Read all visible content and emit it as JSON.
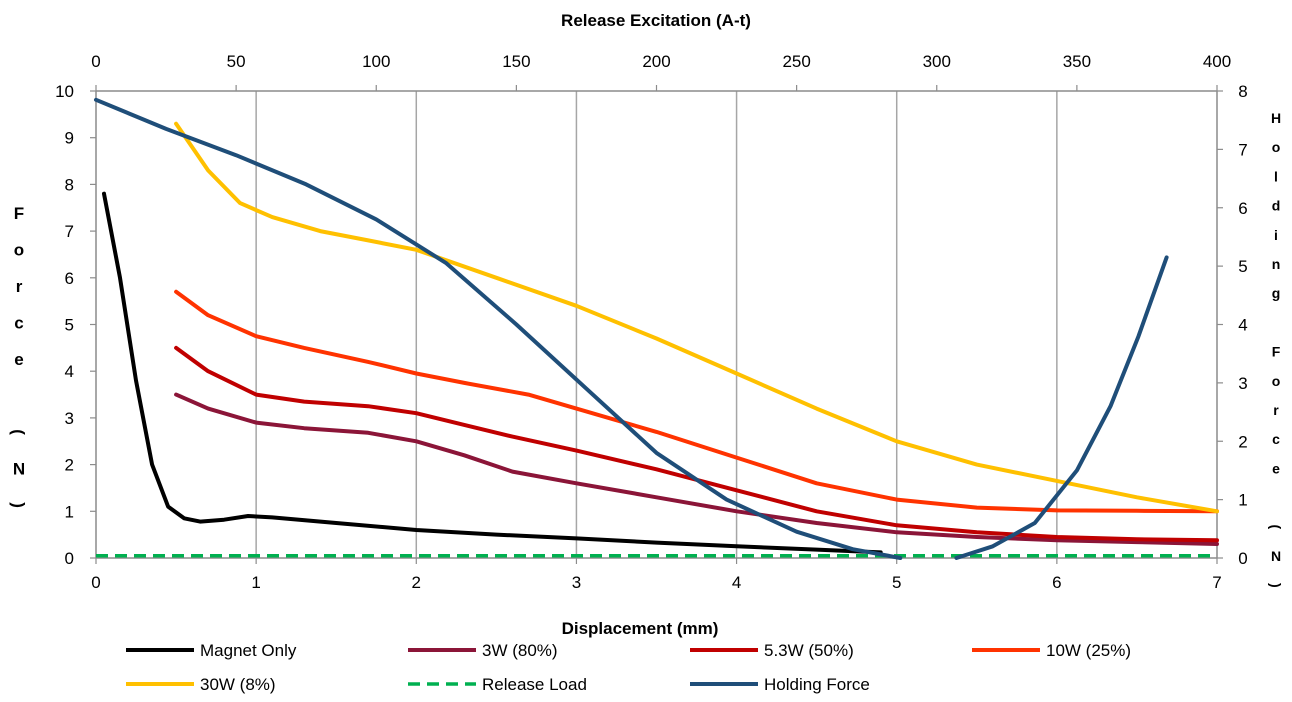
{
  "chart_data": {
    "type": "line",
    "xlabel": "Displacement (mm)",
    "x2label": "Release Excitation (A-t)",
    "ylabel": "Force (N)",
    "y2label": "Holding Force (N)",
    "xlim": [
      0,
      7
    ],
    "x2lim": [
      0,
      400
    ],
    "ylim": [
      0,
      10
    ],
    "y2lim": [
      0,
      8
    ],
    "x_ticks": [
      "0",
      "1",
      "2",
      "3",
      "4",
      "5",
      "6",
      "7"
    ],
    "x2_ticks": [
      "0",
      "50",
      "100",
      "150",
      "200",
      "250",
      "300",
      "350",
      "400"
    ],
    "y_ticks": [
      "0",
      "1",
      "2",
      "3",
      "4",
      "5",
      "6",
      "7",
      "8",
      "9",
      "10"
    ],
    "y2_ticks": [
      "0",
      "1",
      "2",
      "3",
      "4",
      "5",
      "6",
      "7",
      "8"
    ],
    "grid": "vertical",
    "legend_position": "bottom",
    "series": [
      {
        "name": "Magnet Only",
        "color": "#000000",
        "dash": "solid",
        "axis": "primary",
        "x": [
          0.05,
          0.15,
          0.25,
          0.35,
          0.45,
          0.55,
          0.65,
          0.8,
          0.95,
          1.1,
          1.5,
          2.0,
          2.5,
          3.0,
          3.5,
          4.0,
          4.5,
          4.9
        ],
        "y": [
          7.8,
          6.0,
          3.8,
          2.0,
          1.1,
          0.85,
          0.78,
          0.82,
          0.9,
          0.87,
          0.75,
          0.6,
          0.5,
          0.42,
          0.33,
          0.25,
          0.18,
          0.12
        ]
      },
      {
        "name": "3W (80%)",
        "color": "#8B1538",
        "dash": "solid",
        "axis": "primary",
        "x": [
          0.5,
          0.7,
          1.0,
          1.3,
          1.7,
          2.0,
          2.3,
          2.6,
          3.0,
          3.5,
          4.0,
          4.5,
          5.0,
          5.5,
          6.0,
          6.5,
          7.0
        ],
        "y": [
          3.5,
          3.2,
          2.9,
          2.78,
          2.68,
          2.5,
          2.2,
          1.85,
          1.6,
          1.3,
          1.0,
          0.75,
          0.55,
          0.45,
          0.38,
          0.34,
          0.3
        ]
      },
      {
        "name": "5.3W (50%)",
        "color": "#C00000",
        "dash": "solid",
        "axis": "primary",
        "x": [
          0.5,
          0.7,
          1.0,
          1.3,
          1.7,
          2.0,
          2.3,
          2.6,
          3.0,
          3.5,
          4.0,
          4.5,
          5.0,
          5.5,
          6.0,
          6.5,
          7.0
        ],
        "y": [
          4.5,
          4.0,
          3.5,
          3.35,
          3.25,
          3.1,
          2.85,
          2.6,
          2.3,
          1.9,
          1.45,
          1.0,
          0.7,
          0.55,
          0.45,
          0.4,
          0.38
        ]
      },
      {
        "name": "10W (25%)",
        "color": "#FF3300",
        "dash": "solid",
        "axis": "primary",
        "x": [
          0.5,
          0.7,
          1.0,
          1.3,
          1.7,
          2.0,
          2.3,
          2.7,
          3.0,
          3.5,
          4.0,
          4.5,
          5.0,
          5.5,
          6.0,
          6.5,
          7.0
        ],
        "y": [
          5.7,
          5.2,
          4.75,
          4.5,
          4.2,
          3.95,
          3.75,
          3.5,
          3.2,
          2.7,
          2.15,
          1.6,
          1.25,
          1.08,
          1.02,
          1.01,
          1.0
        ]
      },
      {
        "name": "30W (8%)",
        "color": "#FFC000",
        "dash": "solid",
        "axis": "primary",
        "x": [
          0.5,
          0.7,
          0.9,
          1.1,
          1.4,
          1.7,
          2.0,
          2.5,
          3.0,
          3.5,
          4.0,
          4.5,
          5.0,
          5.5,
          6.0,
          6.5,
          7.0
        ],
        "y": [
          9.3,
          8.3,
          7.6,
          7.3,
          7.0,
          6.8,
          6.6,
          6.0,
          5.4,
          4.7,
          3.95,
          3.2,
          2.5,
          2.0,
          1.65,
          1.3,
          1.0
        ]
      },
      {
        "name": "Release Load",
        "color": "#00B050",
        "dash": "dashed",
        "axis": "primary",
        "x": [
          0.0,
          7.0
        ],
        "y": [
          0.05,
          0.05
        ]
      },
      {
        "name": "Holding Force",
        "color": "#1F4E79",
        "dash": "solid",
        "axis": "secondary",
        "x": [
          0,
          25,
          50,
          75,
          100,
          125,
          150,
          175,
          200,
          225,
          250,
          270,
          287
        ],
        "y": [
          7.85,
          7.35,
          6.9,
          6.4,
          5.8,
          5.05,
          4.0,
          2.9,
          1.8,
          1.0,
          0.45,
          0.15,
          0.0
        ],
        "x_extra": [
          307,
          320,
          335,
          350,
          362,
          372,
          382
        ],
        "y_extra": [
          0.0,
          0.2,
          0.6,
          1.5,
          2.6,
          3.8,
          5.15
        ]
      }
    ]
  }
}
